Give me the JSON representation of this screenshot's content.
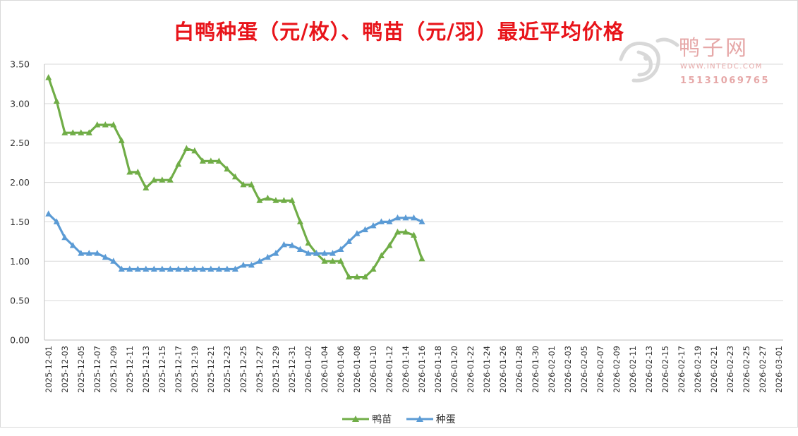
{
  "title": "白鸭种蛋（元/枚）、鸭苗（元/羽）最近平均价格",
  "watermark": {
    "brand": "鸭子网",
    "url": "WWW.INTEDC.COM",
    "phone": "15131069765"
  },
  "colors": {
    "title": "#e8141a",
    "duckling": "#70ad47",
    "egg": "#5b9bd5",
    "grid": "#d9d9d9",
    "watermark": "#e6a8a8"
  },
  "chart_data": {
    "type": "line",
    "ylim": [
      0,
      3.5
    ],
    "yticks": [
      "0.00",
      "0.50",
      "1.00",
      "1.50",
      "2.00",
      "2.50",
      "3.00",
      "3.50"
    ],
    "grid": true,
    "legend_position": "bottom",
    "x_start": "2025-12-01",
    "x_end": "2026-03-02",
    "x_tick_labels": [
      "2025-12-01",
      "2025-12-03",
      "2025-12-05",
      "2025-12-07",
      "2025-12-09",
      "2025-12-11",
      "2025-12-13",
      "2025-12-15",
      "2025-12-17",
      "2025-12-19",
      "2025-12-21",
      "2025-12-23",
      "2025-12-25",
      "2025-12-27",
      "2025-12-29",
      "2025-12-31",
      "2026-01-02",
      "2026-01-04",
      "2026-01-06",
      "2026-01-08",
      "2026-01-10",
      "2026-01-12",
      "2026-01-14",
      "2026-01-16",
      "2026-01-18",
      "2026-01-20",
      "2026-01-22",
      "2026-01-24",
      "2026-01-26",
      "2026-01-28",
      "2026-01-30",
      "2026-02-01",
      "2026-02-03",
      "2026-02-05",
      "2026-02-07",
      "2026-02-09",
      "2026-02-11",
      "2026-02-13",
      "2026-02-15",
      "2026-02-17",
      "2026-02-19",
      "2026-02-21",
      "2026-02-23",
      "2026-02-25",
      "2026-02-27",
      "2026-03-01"
    ],
    "series": [
      {
        "name": "鸭苗",
        "values": [
          3.33,
          3.03,
          2.63,
          2.63,
          2.63,
          2.63,
          2.73,
          2.73,
          2.73,
          2.53,
          2.13,
          2.13,
          1.93,
          2.03,
          2.03,
          2.03,
          2.23,
          2.43,
          2.4,
          2.27,
          2.27,
          2.27,
          2.17,
          2.07,
          1.97,
          1.97,
          1.77,
          1.8,
          1.77,
          1.77,
          1.77,
          1.5,
          1.23,
          1.1,
          1.0,
          1.0,
          1.0,
          0.8,
          0.8,
          0.8,
          0.9,
          1.07,
          1.2,
          1.37,
          1.37,
          1.33,
          1.03
        ]
      },
      {
        "name": "种蛋",
        "values": [
          1.6,
          1.5,
          1.3,
          1.2,
          1.1,
          1.1,
          1.1,
          1.05,
          1.0,
          0.9,
          0.9,
          0.9,
          0.9,
          0.9,
          0.9,
          0.9,
          0.9,
          0.9,
          0.9,
          0.9,
          0.9,
          0.9,
          0.9,
          0.9,
          0.95,
          0.95,
          1.0,
          1.05,
          1.1,
          1.21,
          1.2,
          1.15,
          1.1,
          1.1,
          1.1,
          1.1,
          1.15,
          1.25,
          1.35,
          1.4,
          1.45,
          1.5,
          1.5,
          1.55,
          1.55,
          1.55,
          1.5
        ]
      }
    ]
  }
}
